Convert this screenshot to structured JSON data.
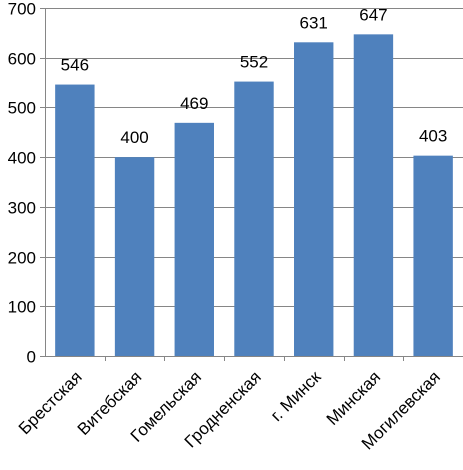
{
  "chart_data": {
    "type": "bar",
    "categories": [
      "Брестская",
      "Витебская",
      "Гомельская",
      "Гродненская",
      "г. Минск",
      "Минская",
      "Могилевская"
    ],
    "values": [
      546,
      400,
      469,
      552,
      631,
      647,
      403
    ],
    "title": "",
    "xlabel": "",
    "ylabel": "",
    "ylim": [
      0,
      700
    ],
    "yticks": [
      0,
      100,
      200,
      300,
      400,
      500,
      600,
      700
    ],
    "grid": true,
    "legend": "none",
    "bar_color": "#4f81bd",
    "gridline_color": "#868686",
    "axis_color": "#868686"
  }
}
